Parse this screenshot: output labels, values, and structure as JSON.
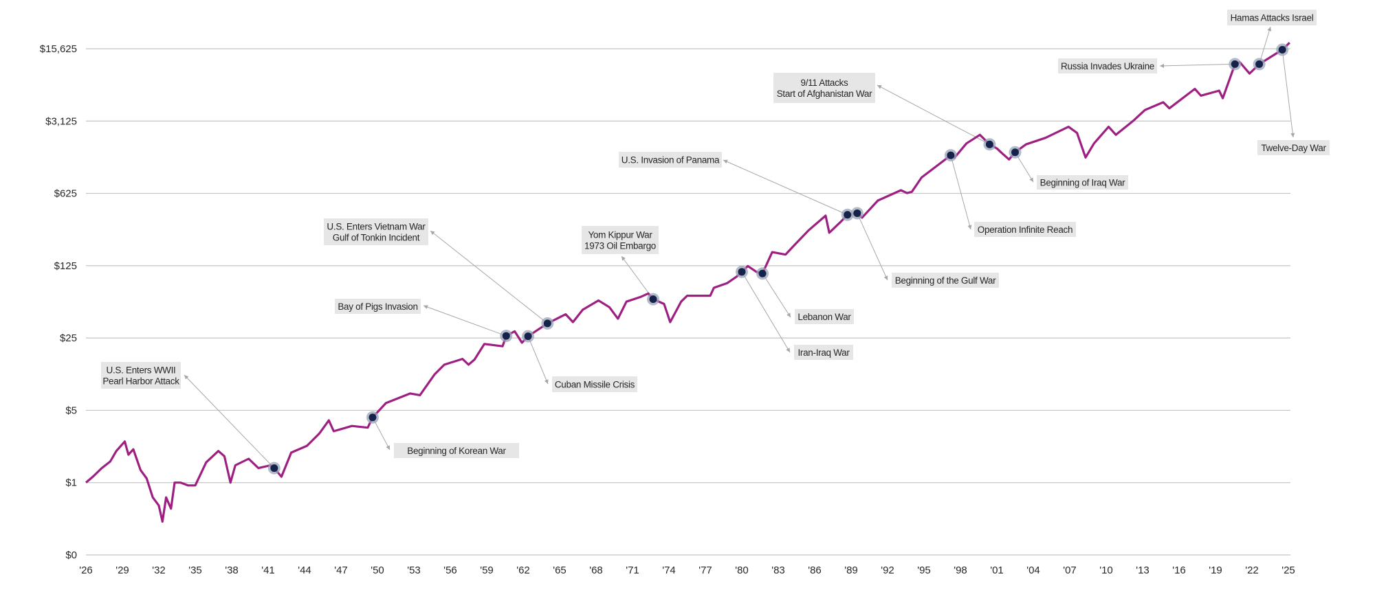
{
  "chart_data": {
    "type": "line",
    "title": "",
    "xlabel": "",
    "ylabel": "",
    "y_scale": "log base 5",
    "ylim": [
      0.2,
      15625
    ],
    "xlim": [
      1926,
      2025
    ],
    "grid": "horizontal",
    "colors": {
      "line": "#9e1f82",
      "marker": "#15224a",
      "marker_halo": "#9aa3b8",
      "gridline": "#c4c4c4",
      "label_bg": "#e6e6e6",
      "leader": "#a6a6a6"
    },
    "y_ticks": [
      {
        "value": 0.2,
        "label": "$0"
      },
      {
        "value": 1,
        "label": "$1"
      },
      {
        "value": 5,
        "label": "$5"
      },
      {
        "value": 25,
        "label": "$25"
      },
      {
        "value": 125,
        "label": "$125"
      },
      {
        "value": 625,
        "label": "$625"
      },
      {
        "value": 3125,
        "label": "$3,125"
      },
      {
        "value": 15625,
        "label": "$15,625"
      }
    ],
    "x_ticks": [
      "'26",
      "'29",
      "'32",
      "'35",
      "'38",
      "'41",
      "'44",
      "'47",
      "'50",
      "'53",
      "'56",
      "'59",
      "'62",
      "'65",
      "'68",
      "'71",
      "'74",
      "'77",
      "'80",
      "'83",
      "'86",
      "'89",
      "'92",
      "'95",
      "'98",
      "'01",
      "'04",
      "'07",
      "'10",
      "'13",
      "'16",
      "'19",
      "'22",
      "'25"
    ],
    "series": [
      {
        "x": [
          1926.0,
          1926.6,
          1927.3,
          1928.0,
          1928.5,
          1929.2,
          1929.5,
          1929.9,
          1930.5,
          1931.0,
          1931.5,
          1932.0,
          1932.3,
          1932.6,
          1933.0,
          1933.3,
          1933.8,
          1934.4,
          1935.0,
          1935.9,
          1936.9,
          1937.4,
          1937.9,
          1938.3,
          1939.4,
          1940.2,
          1941.2,
          1941.5,
          1942.1,
          1942.9,
          1944.2,
          1945.2,
          1946.0,
          1946.4,
          1947.9,
          1949.2,
          1949.6,
          1950.7,
          1952.7,
          1953.5,
          1954.7,
          1955.5,
          1957.0,
          1957.5,
          1958.0,
          1958.8,
          1960.3,
          1960.6,
          1961.3,
          1961.9,
          1962.4,
          1964.0,
          1965.5,
          1966.1,
          1966.9,
          1968.2,
          1969.1,
          1969.8,
          1970.5,
          1971.7,
          1972.3,
          1972.7,
          1973.6,
          1974.1,
          1975.0,
          1975.5,
          1977.4,
          1977.7,
          1978.8,
          1979.6,
          1980.0,
          1980.5,
          1981.2,
          1981.7,
          1982.5,
          1983.6,
          1984.3,
          1985.5,
          1986.9,
          1987.2,
          1988.1,
          1988.7,
          1989.5,
          1989.9,
          1991.2,
          1993.1,
          1993.6,
          1994.0,
          1994.8,
          1997.2,
          1997.5,
          1998.5,
          1999.6,
          2000.4,
          2001.0,
          2001.5,
          2002.0,
          2002.5,
          2003.4,
          2005.0,
          2006.9,
          2007.6,
          2008.3,
          2009.0,
          2010.2,
          2010.8,
          2012.2,
          2013.2,
          2014.7,
          2015.2,
          2017.3,
          2017.8,
          2019.3,
          2019.6,
          2020.6,
          2021.0,
          2021.8,
          2022.6,
          2024.5,
          2025.1
        ],
        "y": [
          1.0,
          1.15,
          1.38,
          1.6,
          2.02,
          2.5,
          1.86,
          2.1,
          1.32,
          1.1,
          0.72,
          0.6,
          0.42,
          0.72,
          0.56,
          1.0,
          1.0,
          0.94,
          0.94,
          1.57,
          2.02,
          1.8,
          1.0,
          1.47,
          1.7,
          1.38,
          1.47,
          1.38,
          1.14,
          1.95,
          2.27,
          2.97,
          4.0,
          3.14,
          3.53,
          3.4,
          4.27,
          5.87,
          7.28,
          7.0,
          11.1,
          13.8,
          15.7,
          13.8,
          15.5,
          21.9,
          20.8,
          26.2,
          29,
          22.5,
          26,
          34.6,
          42.4,
          35.6,
          46.9,
          57.6,
          49.6,
          38.4,
          56.2,
          62.6,
          67.4,
          59.3,
          53.4,
          35.6,
          56.2,
          64,
          64,
          76.5,
          84.8,
          98.5,
          109,
          124,
          109,
          105,
          169,
          160,
          196,
          275,
          381,
          260,
          328,
          388,
          402,
          364,
          533,
          670,
          630,
          647,
          890,
          1460,
          1380,
          1900,
          2300,
          1860,
          1700,
          1500,
          1330,
          1560,
          1860,
          2150,
          2750,
          2400,
          1390,
          1900,
          2750,
          2300,
          3125,
          4000,
          4750,
          4150,
          6400,
          5500,
          6150,
          5200,
          11100,
          11600,
          9000,
          11100,
          15300,
          17900
        ]
      }
    ],
    "annotations": [
      {
        "lines": [
          "U.S. Enters WWII",
          "Pearl Harbor Attack"
        ],
        "x": 1941.5,
        "y": 1.38
      },
      {
        "lines": [
          "Beginning of Korean War"
        ],
        "x": 1949.6,
        "y": 4.27
      },
      {
        "lines": [
          "Bay of Pigs Invasion"
        ],
        "x": 1960.6,
        "y": 26.2
      },
      {
        "lines": [
          "Cuban Missile Crisis"
        ],
        "x": 1962.4,
        "y": 26
      },
      {
        "lines": [
          "U.S. Enters Vietnam War",
          "Gulf of Tonkin Incident"
        ],
        "x": 1964.0,
        "y": 34.6
      },
      {
        "lines": [
          "Yom Kippur War",
          "1973 Oil Embargo"
        ],
        "x": 1972.7,
        "y": 59.3
      },
      {
        "lines": [
          "Iran-Iraq War"
        ],
        "x": 1980.0,
        "y": 109
      },
      {
        "lines": [
          "Lebanon War"
        ],
        "x": 1981.7,
        "y": 105
      },
      {
        "lines": [
          "U.S. Invasion of Panama"
        ],
        "x": 1988.7,
        "y": 388
      },
      {
        "lines": [
          "Beginning of the Gulf War"
        ],
        "x": 1989.5,
        "y": 402
      },
      {
        "lines": [
          "Operation Infinite  Reach"
        ],
        "x": 1997.2,
        "y": 1460
      },
      {
        "lines": [
          "9/11 Attacks",
          "Start of Afghanistan War"
        ],
        "x": 2000.4,
        "y": 1860
      },
      {
        "lines": [
          "Beginning of Iraq War"
        ],
        "x": 2002.5,
        "y": 1560
      },
      {
        "lines": [
          "Russia Invades Ukraine"
        ],
        "x": 2020.6,
        "y": 11100
      },
      {
        "lines": [
          "Hamas Attacks Israel"
        ],
        "x": 2022.6,
        "y": 11100
      },
      {
        "lines": [
          "Twelve-Day War"
        ],
        "x": 2024.5,
        "y": 15300
      }
    ]
  }
}
